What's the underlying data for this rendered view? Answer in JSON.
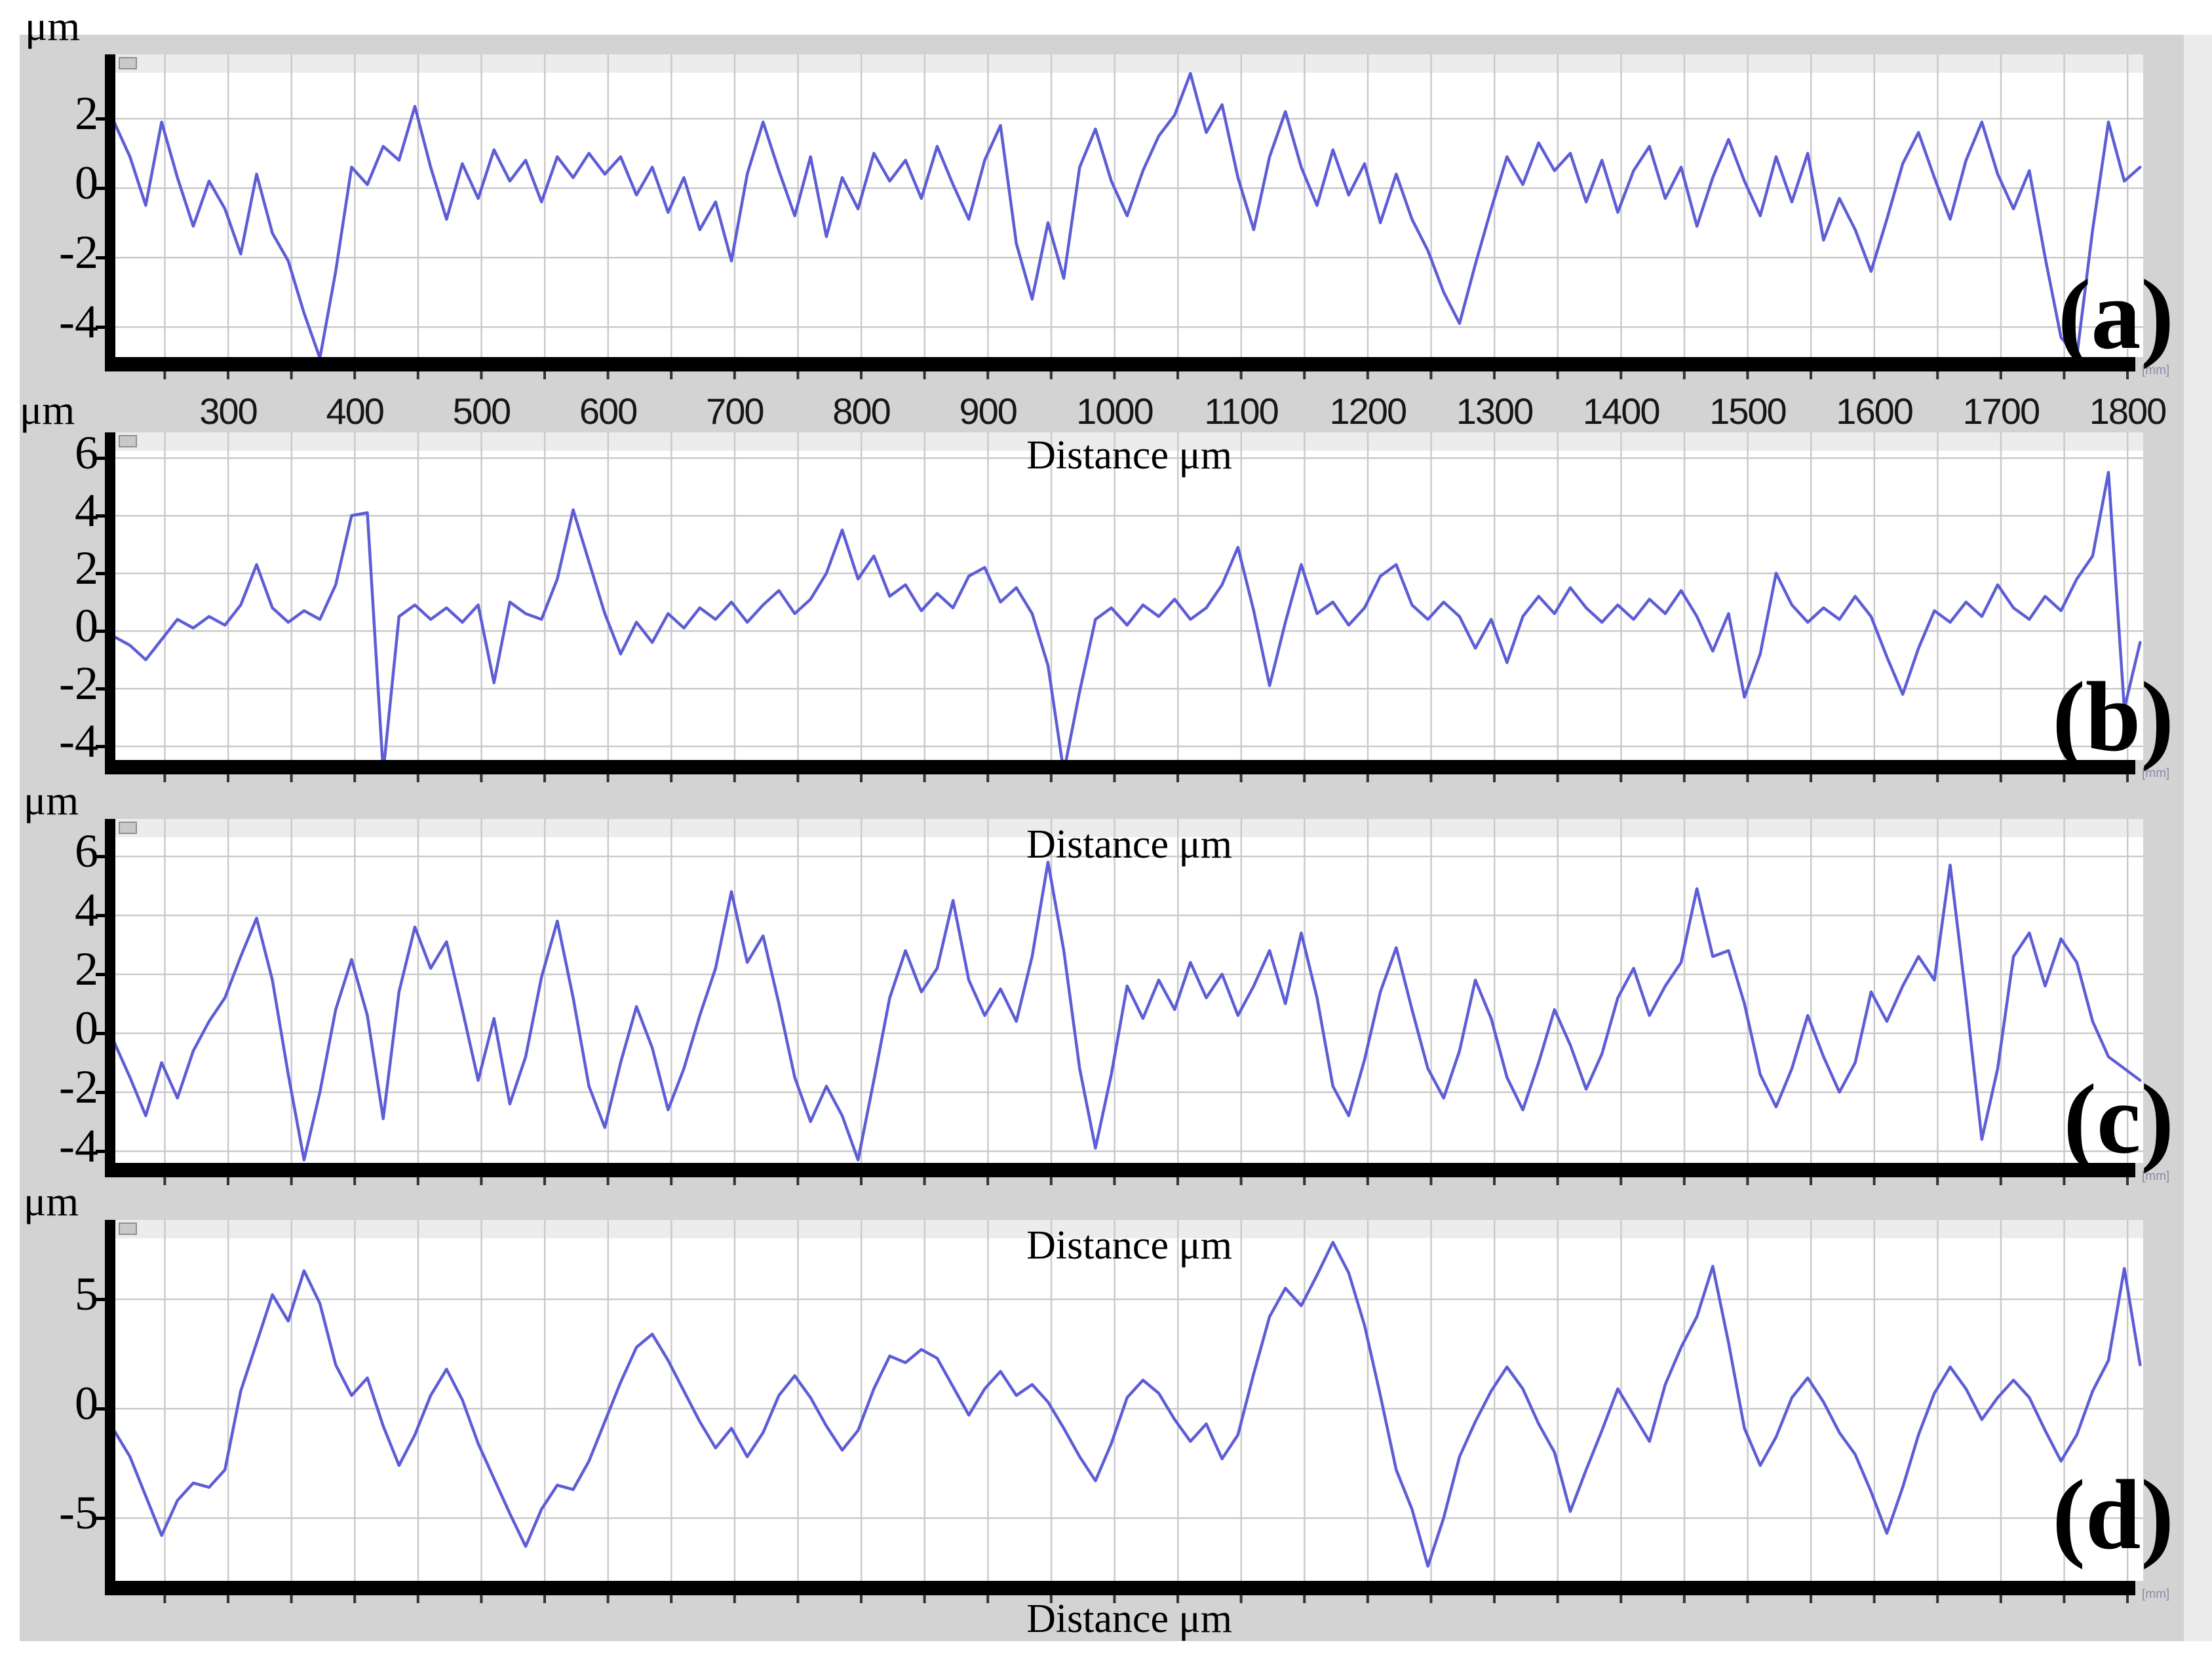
{
  "figure": {
    "y_unit_label": "μm",
    "x_axis_label": "Distance μm",
    "axis_end_note": "[mm]",
    "colors": {
      "trace": "#5d5dd6",
      "canvas_gray": "#d3d3d3",
      "canvas_light": "#ececec",
      "plot_bg": "#ffffff",
      "grid": "#c9c9c9",
      "axis": "#000000",
      "tick_text": "#161616"
    }
  },
  "chart_data": [
    {
      "id": "a",
      "label": "(a)",
      "type": "line",
      "x_unit": "μm",
      "y_unit": "μm",
      "x_start_um": 210,
      "x_step_um": 12.5,
      "x_tick_labels": [
        300,
        400,
        500,
        600,
        700,
        800,
        900,
        1000,
        1100,
        1200,
        1300,
        1400,
        1500,
        1600,
        1700,
        1800
      ],
      "y_ticks": [
        2,
        0,
        -2,
        -4
      ],
      "y_axis_range": [
        -4.9,
        3.8
      ],
      "values": [
        1.9,
        0.9,
        -0.5,
        1.9,
        0.3,
        -1.1,
        0.2,
        -0.6,
        -1.9,
        0.4,
        -1.3,
        -2.1,
        -3.6,
        -4.9,
        -2.4,
        0.6,
        0.1,
        1.2,
        0.8,
        2.35,
        0.6,
        -0.9,
        0.7,
        -0.3,
        1.1,
        0.2,
        0.8,
        -0.4,
        0.9,
        0.3,
        1.0,
        0.4,
        0.9,
        -0.2,
        0.6,
        -0.7,
        0.3,
        -1.2,
        -0.4,
        -2.1,
        0.4,
        1.9,
        0.5,
        -0.8,
        0.9,
        -1.4,
        0.3,
        -0.6,
        1.0,
        0.2,
        0.8,
        -0.3,
        1.2,
        0.1,
        -0.9,
        0.8,
        1.8,
        -1.6,
        -3.2,
        -1.0,
        -2.6,
        0.6,
        1.7,
        0.2,
        -0.8,
        0.5,
        1.5,
        2.1,
        3.3,
        1.6,
        2.4,
        0.3,
        -1.2,
        0.9,
        2.2,
        0.6,
        -0.5,
        1.1,
        -0.2,
        0.7,
        -1.0,
        0.4,
        -0.9,
        -1.8,
        -3.0,
        -3.9,
        -2.2,
        -0.6,
        0.9,
        0.1,
        1.3,
        0.5,
        1.0,
        -0.4,
        0.8,
        -0.7,
        0.5,
        1.2,
        -0.3,
        0.6,
        -1.1,
        0.3,
        1.4,
        0.2,
        -0.8,
        0.9,
        -0.4,
        1.0,
        -1.5,
        -0.3,
        -1.2,
        -2.4,
        -0.9,
        0.7,
        1.6,
        0.3,
        -0.9,
        0.8,
        1.9,
        0.4,
        -0.6,
        0.5,
        -2.0,
        -4.3,
        -4.85,
        -1.2,
        1.9,
        0.2,
        0.6
      ]
    },
    {
      "id": "b",
      "label": "(b)",
      "type": "line",
      "x_unit": "μm",
      "y_unit": "μm",
      "x_start_um": 210,
      "x_step_um": 12.5,
      "y_ticks": [
        6,
        4,
        2,
        0,
        -2,
        -4
      ],
      "y_axis_range": [
        -4.5,
        6.8
      ],
      "values": [
        -0.2,
        -0.5,
        -1.0,
        -0.3,
        0.4,
        0.1,
        0.5,
        0.2,
        0.9,
        2.3,
        0.8,
        0.3,
        0.7,
        0.4,
        1.6,
        4.0,
        4.1,
        -4.9,
        0.5,
        0.9,
        0.4,
        0.8,
        0.3,
        0.9,
        -1.8,
        1.0,
        0.6,
        0.4,
        1.8,
        4.2,
        2.4,
        0.6,
        -0.8,
        0.3,
        -0.4,
        0.6,
        0.1,
        0.8,
        0.4,
        1.0,
        0.3,
        0.9,
        1.4,
        0.6,
        1.1,
        2.0,
        3.5,
        1.8,
        2.6,
        1.2,
        1.6,
        0.7,
        1.3,
        0.8,
        1.9,
        2.2,
        1.0,
        1.5,
        0.6,
        -1.2,
        -4.9,
        -2.1,
        0.4,
        0.8,
        0.2,
        0.9,
        0.5,
        1.1,
        0.4,
        0.8,
        1.6,
        2.9,
        0.7,
        -1.9,
        0.3,
        2.3,
        0.6,
        1.0,
        0.2,
        0.8,
        1.9,
        2.3,
        0.9,
        0.4,
        1.0,
        0.5,
        -0.6,
        0.4,
        -1.1,
        0.5,
        1.2,
        0.6,
        1.5,
        0.8,
        0.3,
        0.9,
        0.4,
        1.1,
        0.6,
        1.4,
        0.5,
        -0.7,
        0.6,
        -2.3,
        -0.8,
        2.0,
        0.9,
        0.3,
        0.8,
        0.4,
        1.2,
        0.5,
        -0.9,
        -2.2,
        -0.6,
        0.7,
        0.3,
        1.0,
        0.5,
        1.6,
        0.8,
        0.4,
        1.2,
        0.7,
        1.8,
        2.6,
        5.5,
        -2.7,
        -0.4
      ]
    },
    {
      "id": "c",
      "label": "(c)",
      "type": "line",
      "x_unit": "μm",
      "y_unit": "μm",
      "x_start_um": 210,
      "x_step_um": 12.5,
      "y_ticks": [
        6,
        4,
        2,
        0,
        -2,
        -4
      ],
      "y_axis_range": [
        -4.4,
        6.6
      ],
      "values": [
        -0.3,
        -1.5,
        -2.8,
        -1.0,
        -2.2,
        -0.6,
        0.4,
        1.2,
        2.6,
        3.9,
        1.8,
        -1.4,
        -4.3,
        -2.0,
        0.8,
        2.5,
        0.6,
        -2.9,
        1.4,
        3.6,
        2.2,
        3.1,
        0.8,
        -1.6,
        0.5,
        -2.4,
        -0.8,
        1.9,
        3.8,
        1.2,
        -1.8,
        -3.2,
        -1.0,
        0.9,
        -0.5,
        -2.6,
        -1.2,
        0.6,
        2.2,
        4.8,
        2.4,
        3.3,
        1.0,
        -1.5,
        -3.0,
        -1.8,
        -2.8,
        -4.3,
        -1.6,
        1.2,
        2.8,
        1.4,
        2.2,
        4.5,
        1.8,
        0.6,
        1.5,
        0.4,
        2.6,
        5.8,
        2.8,
        -1.2,
        -3.9,
        -1.4,
        1.6,
        0.5,
        1.8,
        0.8,
        2.4,
        1.2,
        2.0,
        0.6,
        1.6,
        2.8,
        1.0,
        3.4,
        1.2,
        -1.8,
        -2.8,
        -0.9,
        1.4,
        2.9,
        0.8,
        -1.2,
        -2.2,
        -0.6,
        1.8,
        0.5,
        -1.5,
        -2.6,
        -1.0,
        0.8,
        -0.4,
        -1.9,
        -0.7,
        1.2,
        2.2,
        0.6,
        1.6,
        2.4,
        4.9,
        2.6,
        2.8,
        1.0,
        -1.4,
        -2.5,
        -1.2,
        0.6,
        -0.8,
        -2.0,
        -1.0,
        1.4,
        0.4,
        1.6,
        2.6,
        1.8,
        5.7,
        1.2,
        -3.6,
        -1.2,
        2.6,
        3.4,
        1.6,
        3.2,
        2.4,
        0.4,
        -0.8,
        -1.2,
        -1.6
      ]
    },
    {
      "id": "d",
      "label": "(d)",
      "type": "line",
      "x_unit": "μm",
      "y_unit": "μm",
      "x_start_um": 210,
      "x_step_um": 12.5,
      "y_ticks": [
        5,
        0,
        -5
      ],
      "y_axis_range": [
        -7.9,
        8.6
      ],
      "values": [
        -1.0,
        -2.2,
        -4.0,
        -5.8,
        -4.2,
        -3.4,
        -3.6,
        -2.8,
        0.8,
        3.0,
        5.2,
        4.0,
        6.3,
        4.8,
        2.0,
        0.6,
        1.4,
        -0.8,
        -2.6,
        -1.2,
        0.6,
        1.8,
        0.4,
        -1.6,
        -3.2,
        -4.8,
        -6.3,
        -4.6,
        -3.5,
        -3.7,
        -2.4,
        -0.6,
        1.2,
        2.8,
        3.4,
        2.2,
        0.8,
        -0.6,
        -1.8,
        -0.9,
        -2.2,
        -1.1,
        0.6,
        1.5,
        0.5,
        -0.8,
        -1.9,
        -1.0,
        0.9,
        2.4,
        2.1,
        2.7,
        2.3,
        1.0,
        -0.3,
        0.9,
        1.7,
        0.6,
        1.1,
        0.3,
        -0.9,
        -2.2,
        -3.3,
        -1.6,
        0.5,
        1.3,
        0.7,
        -0.5,
        -1.5,
        -0.7,
        -2.3,
        -1.2,
        1.6,
        4.2,
        5.5,
        4.7,
        6.1,
        7.6,
        6.2,
        3.8,
        0.6,
        -2.8,
        -4.6,
        -7.2,
        -5.0,
        -2.2,
        -0.6,
        0.8,
        1.9,
        0.9,
        -0.7,
        -2.0,
        -4.7,
        -2.8,
        -1.0,
        0.9,
        -0.3,
        -1.5,
        1.1,
        2.8,
        4.2,
        6.5,
        3.0,
        -0.9,
        -2.6,
        -1.3,
        0.5,
        1.4,
        0.3,
        -1.1,
        -2.1,
        -3.8,
        -5.7,
        -3.6,
        -1.2,
        0.7,
        1.9,
        0.9,
        -0.5,
        0.5,
        1.3,
        0.5,
        -1.0,
        -2.4,
        -1.2,
        0.8,
        2.2,
        6.4,
        2.0
      ]
    }
  ]
}
